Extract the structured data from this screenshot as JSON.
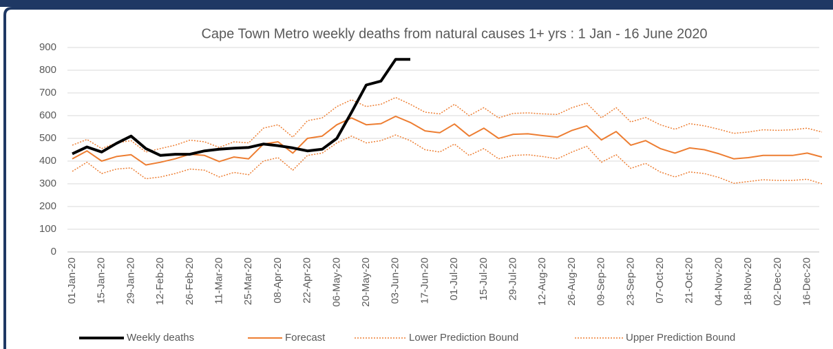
{
  "chart_data": {
    "type": "line",
    "title": "Cape Town Metro weekly deaths from natural causes 1+ yrs : 1 Jan - 16 June 2020",
    "categories": [
      "01-Jan-20",
      null,
      "15-Jan-20",
      null,
      "29-Jan-20",
      null,
      "12-Feb-20",
      null,
      "26-Feb-20",
      null,
      "11-Mar-20",
      null,
      "25-Mar-20",
      null,
      "08-Apr-20",
      null,
      "22-Apr-20",
      null,
      "06-May-20",
      null,
      "20-May-20",
      null,
      "03-Jun-20",
      null,
      "17-Jun-20",
      null,
      "01-Jul-20",
      null,
      "15-Jul-20",
      null,
      "29-Jul-20",
      null,
      "12-Aug-20",
      null,
      "26-Aug-20",
      null,
      "09-Sep-20",
      null,
      "23-Sep-20",
      null,
      "07-Oct-20",
      null,
      "21-Oct-20",
      null,
      "04-Nov-20",
      null,
      "18-Nov-20",
      null,
      "02-Dec-20",
      null,
      "16-Dec-20",
      null
    ],
    "ylim": [
      0,
      900
    ],
    "yticks": [
      0,
      100,
      200,
      300,
      400,
      500,
      600,
      700,
      800,
      900
    ],
    "grid": true,
    "legend": "bottom",
    "series": [
      {
        "name": "Weekly deaths",
        "color": "#000000",
        "width": 4,
        "dash": "solid",
        "values": [
          432,
          462,
          440,
          478,
          510,
          455,
          425,
          430,
          430,
          445,
          452,
          457,
          460,
          475,
          468,
          458,
          445,
          452,
          500,
          615,
          735,
          752,
          848,
          848,
          null,
          null,
          null,
          null,
          null,
          null,
          null,
          null,
          null,
          null,
          null,
          null,
          null,
          null,
          null,
          null,
          null,
          null,
          null,
          null,
          null,
          null,
          null,
          null,
          null,
          null,
          null,
          null
        ]
      },
      {
        "name": "Forecast",
        "color": "#ed7d31",
        "width": 2,
        "dash": "solid",
        "values": [
          410,
          445,
          400,
          420,
          428,
          383,
          395,
          410,
          430,
          425,
          398,
          418,
          410,
          475,
          485,
          435,
          500,
          510,
          560,
          590,
          560,
          565,
          597,
          570,
          533,
          525,
          563,
          510,
          545,
          500,
          518,
          520,
          512,
          505,
          535,
          555,
          493,
          530,
          470,
          490,
          455,
          435,
          458,
          450,
          432,
          410,
          415,
          425,
          425,
          425,
          435,
          418
        ]
      },
      {
        "name": "Lower Prediction Bound",
        "color": "#ed7d31",
        "width": 1.5,
        "dash": "dotted",
        "values": [
          355,
          395,
          345,
          365,
          370,
          322,
          330,
          345,
          365,
          360,
          330,
          350,
          340,
          400,
          415,
          360,
          425,
          435,
          480,
          510,
          480,
          490,
          515,
          490,
          450,
          440,
          475,
          425,
          455,
          410,
          425,
          428,
          420,
          410,
          440,
          465,
          395,
          428,
          368,
          390,
          352,
          330,
          352,
          345,
          328,
          302,
          310,
          318,
          315,
          315,
          320,
          300
        ]
      },
      {
        "name": "Upper Prediction Bound",
        "color": "#ed7d31",
        "width": 1.5,
        "dash": "dotted",
        "values": [
          470,
          495,
          455,
          480,
          490,
          440,
          455,
          470,
          492,
          485,
          460,
          485,
          480,
          545,
          560,
          505,
          578,
          590,
          640,
          670,
          640,
          650,
          680,
          650,
          615,
          608,
          650,
          600,
          635,
          590,
          610,
          612,
          608,
          605,
          635,
          655,
          590,
          635,
          572,
          592,
          560,
          540,
          565,
          555,
          540,
          522,
          528,
          538,
          535,
          538,
          545,
          528
        ]
      }
    ]
  }
}
